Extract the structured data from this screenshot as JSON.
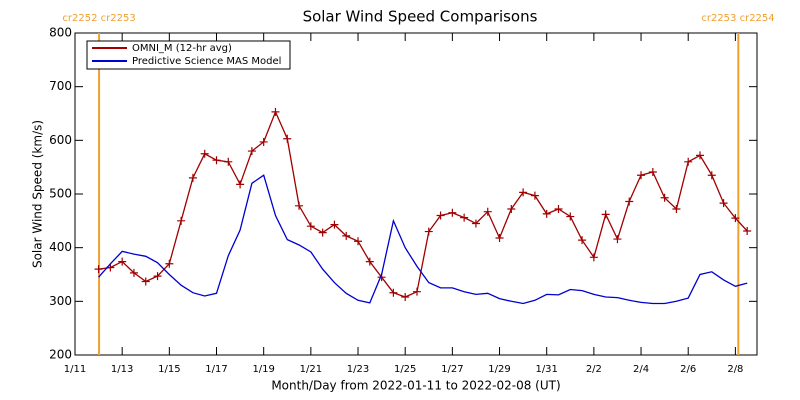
{
  "chart_data": {
    "type": "line",
    "title": "Solar Wind Speed Comparisons",
    "x_label": "Month/Day from 2022-01-11 to 2022-02-08 (UT)",
    "y_label": "Solar Wind Speed (km/s)",
    "x": [
      "2022-01-12T00:00",
      "2022-01-12T12:00",
      "2022-01-13T00:00",
      "2022-01-13T12:00",
      "2022-01-14T00:00",
      "2022-01-14T12:00",
      "2022-01-15T00:00",
      "2022-01-15T12:00",
      "2022-01-16T00:00",
      "2022-01-16T12:00",
      "2022-01-17T00:00",
      "2022-01-17T12:00",
      "2022-01-18T00:00",
      "2022-01-18T12:00",
      "2022-01-19T00:00",
      "2022-01-19T12:00",
      "2022-01-20T00:00",
      "2022-01-20T12:00",
      "2022-01-21T00:00",
      "2022-01-21T12:00",
      "2022-01-22T00:00",
      "2022-01-22T12:00",
      "2022-01-23T00:00",
      "2022-01-23T12:00",
      "2022-01-24T00:00",
      "2022-01-24T12:00",
      "2022-01-25T00:00",
      "2022-01-25T12:00",
      "2022-01-26T00:00",
      "2022-01-26T12:00",
      "2022-01-27T00:00",
      "2022-01-27T12:00",
      "2022-01-28T00:00",
      "2022-01-28T12:00",
      "2022-01-29T00:00",
      "2022-01-29T12:00",
      "2022-01-30T00:00",
      "2022-01-30T12:00",
      "2022-01-31T00:00",
      "2022-01-31T12:00",
      "2022-02-01T00:00",
      "2022-02-01T12:00",
      "2022-02-02T00:00",
      "2022-02-02T12:00",
      "2022-02-03T00:00",
      "2022-02-03T12:00",
      "2022-02-04T00:00",
      "2022-02-04T12:00",
      "2022-02-05T00:00",
      "2022-02-05T12:00",
      "2022-02-06T00:00",
      "2022-02-06T12:00",
      "2022-02-07T00:00",
      "2022-02-07T12:00",
      "2022-02-08T00:00",
      "2022-02-08T12:00"
    ],
    "series": [
      {
        "name": "OMNI_M (12-hr avg)",
        "color": "#a00000",
        "marker": "+",
        "values": [
          360,
          363,
          374,
          353,
          337,
          347,
          370,
          450,
          530,
          575,
          563,
          560,
          518,
          580,
          597,
          653,
          603,
          478,
          440,
          428,
          443,
          422,
          412,
          374,
          345,
          316,
          308,
          318,
          430,
          460,
          465,
          456,
          445,
          467,
          418,
          472,
          503,
          497,
          463,
          472,
          458,
          414,
          382,
          462,
          416,
          486,
          535,
          541,
          493,
          472,
          560,
          572,
          535,
          483,
          455,
          431
        ]
      },
      {
        "name": "Predictive Science MAS Model",
        "color": "#0000d0",
        "values": [
          345,
          370,
          393,
          388,
          384,
          372,
          350,
          330,
          316,
          310,
          315,
          385,
          433,
          520,
          535,
          460,
          415,
          405,
          392,
          360,
          335,
          315,
          302,
          297,
          350,
          450,
          400,
          365,
          335,
          325,
          325,
          318,
          313,
          315,
          305,
          300,
          296,
          302,
          313,
          312,
          322,
          320,
          313,
          308,
          307,
          302,
          298,
          296,
          296,
          300,
          306,
          350,
          355,
          340,
          328,
          334
        ]
      }
    ],
    "xlim": [
      "2022-01-11T00:00",
      "2022-02-08T22:00"
    ],
    "xticks": [
      {
        "value": "2022-01-11T00:00",
        "label": "1/11"
      },
      {
        "value": "2022-01-13T00:00",
        "label": "1/13"
      },
      {
        "value": "2022-01-15T00:00",
        "label": "1/15"
      },
      {
        "value": "2022-01-17T00:00",
        "label": "1/17"
      },
      {
        "value": "2022-01-19T00:00",
        "label": "1/19"
      },
      {
        "value": "2022-01-21T00:00",
        "label": "1/21"
      },
      {
        "value": "2022-01-23T00:00",
        "label": "1/23"
      },
      {
        "value": "2022-01-25T00:00",
        "label": "1/25"
      },
      {
        "value": "2022-01-27T00:00",
        "label": "1/27"
      },
      {
        "value": "2022-01-29T00:00",
        "label": "1/29"
      },
      {
        "value": "2022-01-31T00:00",
        "label": "1/31"
      },
      {
        "value": "2022-02-02T00:00",
        "label": "2/2"
      },
      {
        "value": "2022-02-04T00:00",
        "label": "2/4"
      },
      {
        "value": "2022-02-06T00:00",
        "label": "2/6"
      },
      {
        "value": "2022-02-08T00:00",
        "label": "2/8"
      }
    ],
    "ylim": [
      200,
      800
    ],
    "yticks": [
      200,
      300,
      400,
      500,
      600,
      700,
      800
    ],
    "legend": "upper left",
    "annotations": [
      {
        "x": "2022-01-12T00:30",
        "label": "cr2252 cr2253",
        "color": "#f0a030"
      },
      {
        "x": "2022-02-08T03:00",
        "label": "cr2253 cr2254",
        "color": "#f0a030"
      }
    ]
  }
}
